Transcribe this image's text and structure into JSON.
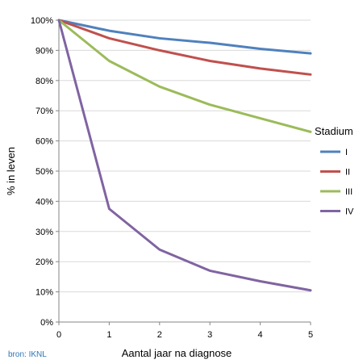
{
  "chart_data": {
    "type": "line",
    "title": "",
    "xlabel": "Aantal jaar na diagnose",
    "ylabel": "% in leven",
    "x": [
      0,
      1,
      2,
      3,
      4,
      5
    ],
    "xlim": [
      0,
      5
    ],
    "ylim": [
      0,
      100
    ],
    "x_ticks": [
      "0",
      "1",
      "2",
      "3",
      "4",
      "5"
    ],
    "y_ticks": [
      "0%",
      "10%",
      "20%",
      "30%",
      "40%",
      "50%",
      "60%",
      "70%",
      "80%",
      "90%",
      "100%"
    ],
    "grid": "horizontal",
    "legend": {
      "title": "Stadium",
      "placement": "right"
    },
    "series": [
      {
        "name": "I",
        "color": "#4f81bd",
        "values": [
          100,
          96.5,
          94,
          92.5,
          90.5,
          89
        ]
      },
      {
        "name": "II",
        "color": "#c0504d",
        "values": [
          100,
          94,
          90,
          86.5,
          84,
          82
        ]
      },
      {
        "name": "III",
        "color": "#9bbb59",
        "values": [
          100,
          86.5,
          78,
          72,
          67.5,
          63
        ]
      },
      {
        "name": "IV",
        "color": "#8064a2",
        "values": [
          100,
          37.5,
          24,
          17,
          13.5,
          10.5
        ]
      }
    ],
    "source": "bron: IKNL"
  }
}
